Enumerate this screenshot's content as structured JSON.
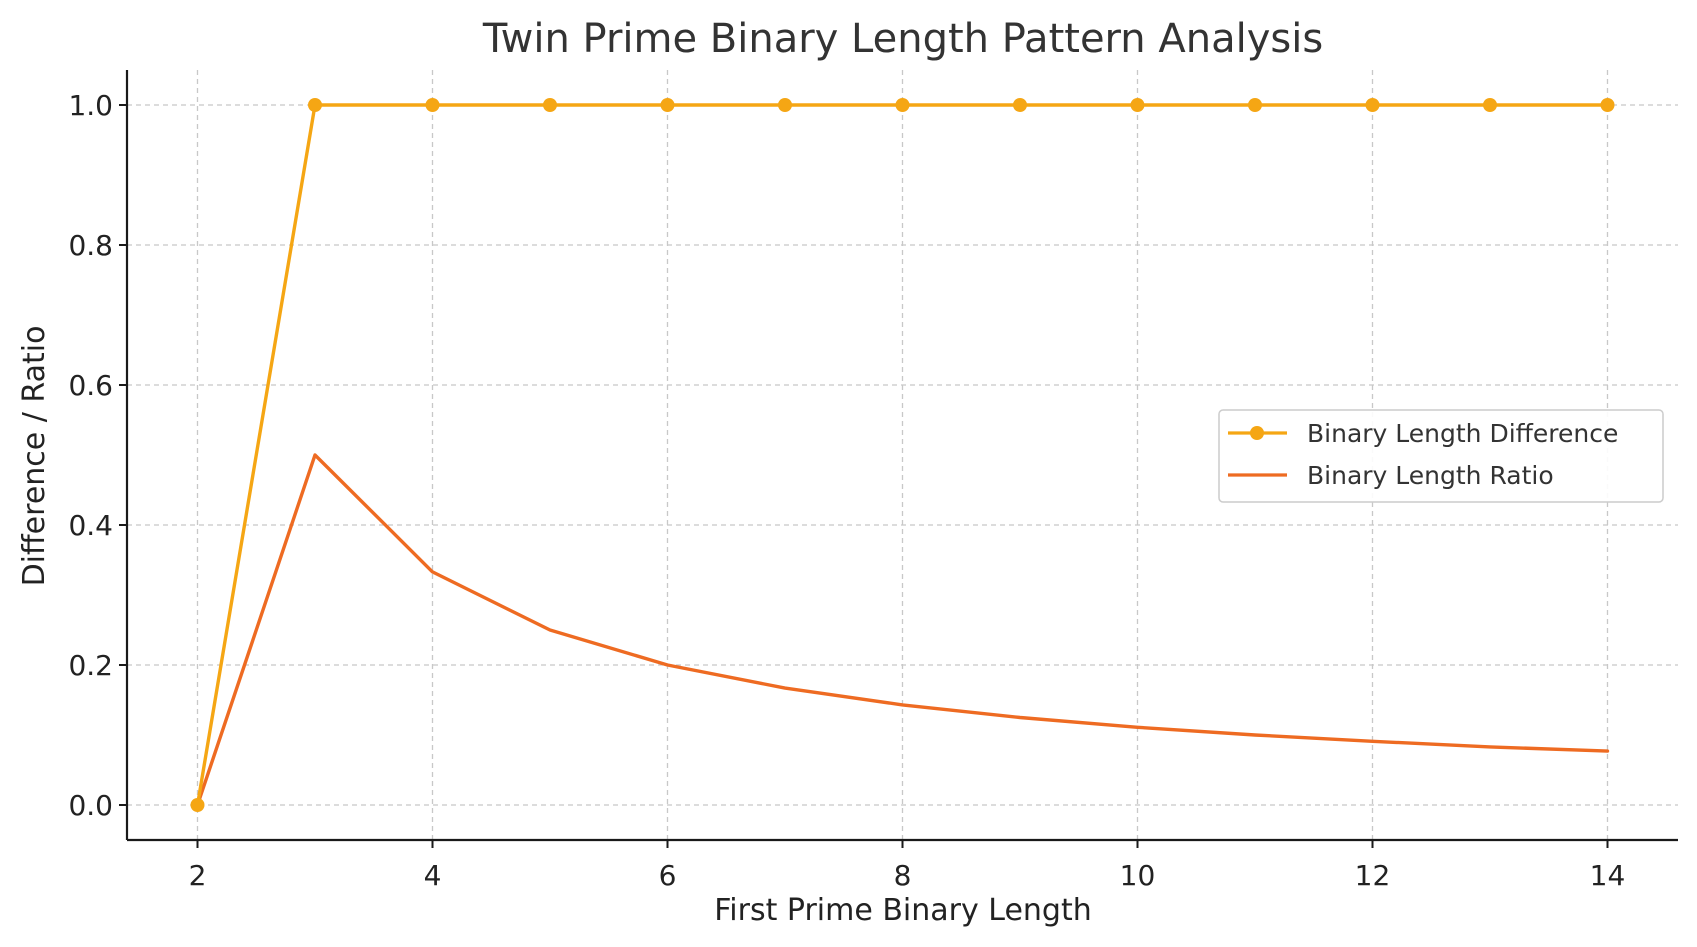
{
  "chart_data": {
    "type": "line",
    "title": "Twin Prime Binary Length Pattern Analysis",
    "xlabel": "First Prime Binary Length",
    "ylabel": "Difference / Ratio",
    "xlim": [
      1.4,
      14.6
    ],
    "ylim": [
      -0.05,
      1.05
    ],
    "x_ticks": [
      2,
      4,
      6,
      8,
      10,
      12,
      14
    ],
    "y_ticks": [
      0.0,
      0.2,
      0.4,
      0.6,
      0.8,
      1.0
    ],
    "y_tick_labels": [
      "0.0",
      "0.2",
      "0.4",
      "0.6",
      "0.8",
      "1.0"
    ],
    "grid": true,
    "legend_position": "center-right",
    "x": [
      2,
      3,
      4,
      5,
      6,
      7,
      8,
      9,
      10,
      11,
      12,
      13,
      14
    ],
    "series": [
      {
        "name": "Binary Length Difference",
        "color": "#f5a614",
        "marker": "circle",
        "values": [
          0,
          1,
          1,
          1,
          1,
          1,
          1,
          1,
          1,
          1,
          1,
          1,
          1
        ]
      },
      {
        "name": "Binary Length Ratio",
        "color": "#ee6b22",
        "marker": "none",
        "values": [
          0,
          0.5,
          0.333,
          0.25,
          0.2,
          0.167,
          0.143,
          0.125,
          0.111,
          0.1,
          0.091,
          0.083,
          0.077
        ]
      }
    ]
  }
}
